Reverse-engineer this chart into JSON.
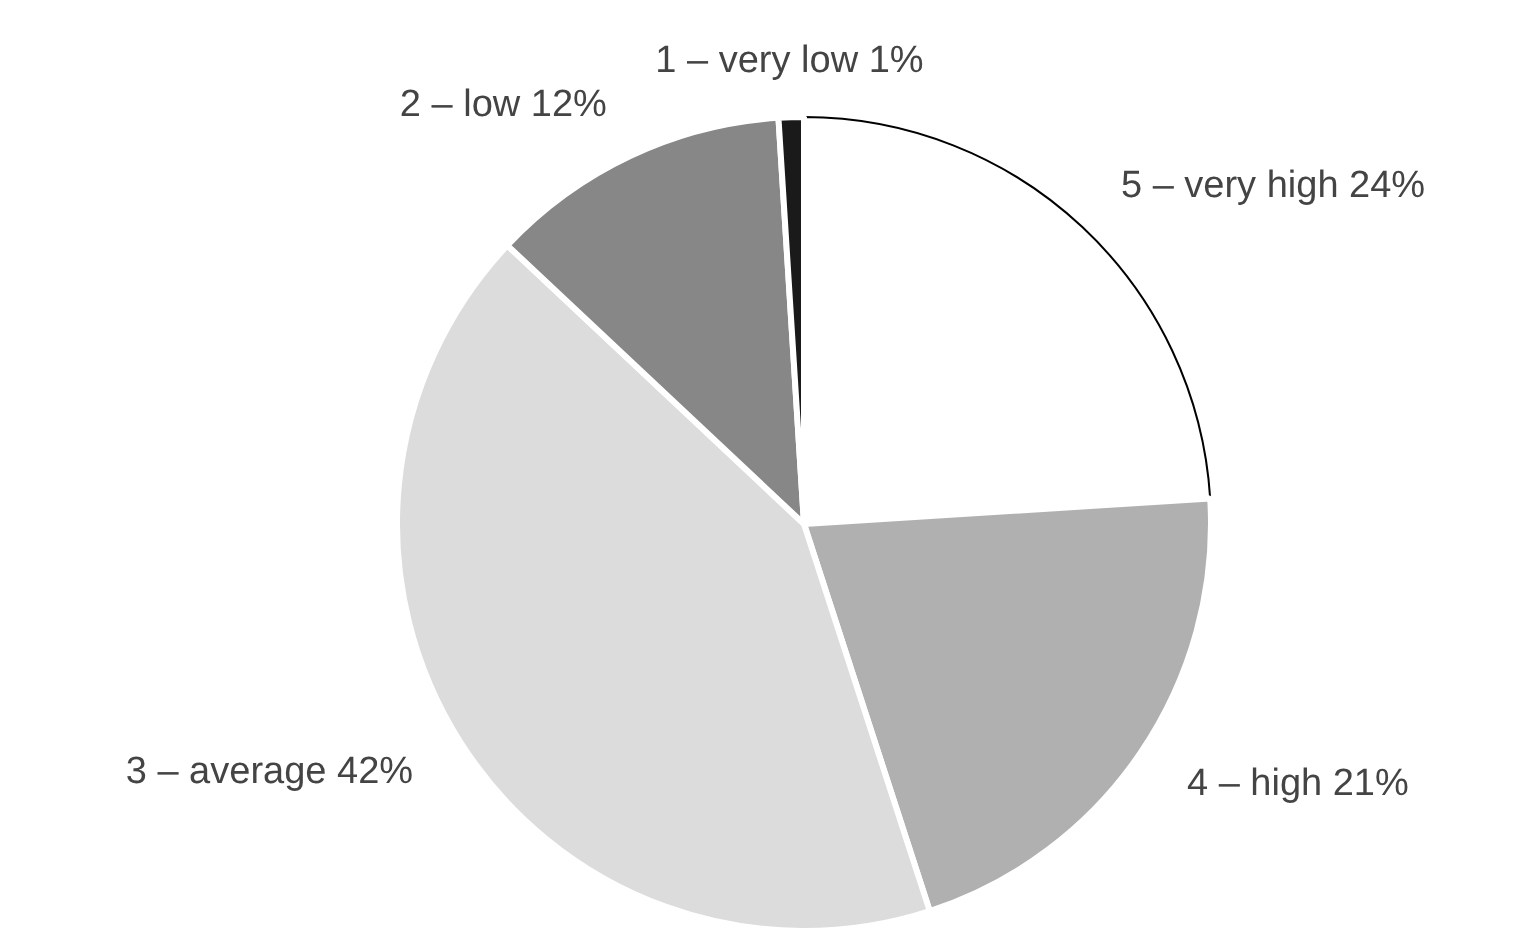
{
  "chart_data": {
    "type": "pie",
    "categories": [
      "5 – very high",
      "4 – high",
      "3 – average",
      "2 – low",
      "1 – very low"
    ],
    "values": [
      24,
      21,
      42,
      12,
      1
    ],
    "value_labels": [
      "24%",
      "21%",
      "42%",
      "12%",
      "1%"
    ],
    "colors": [
      "#ffffff",
      "#b0b0b0",
      "#dcdcdc",
      "#878787",
      "#1a1a1a"
    ],
    "legend": false
  }
}
